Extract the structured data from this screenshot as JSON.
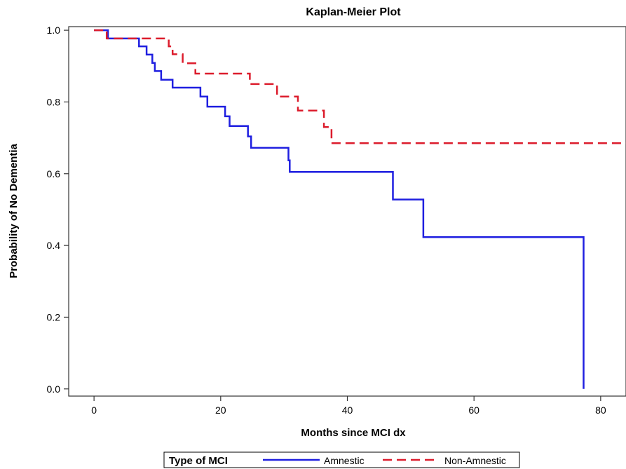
{
  "chart_data": {
    "type": "line",
    "title": "Kaplan-Meier Plot",
    "xlabel": "Months since MCI dx",
    "ylabel": "Probability of No Dementia",
    "xlim": [
      -4,
      84
    ],
    "ylim": [
      -0.02,
      1.01
    ],
    "xticks": [
      "0",
      "20",
      "40",
      "60",
      "80"
    ],
    "yticks": [
      "0.0",
      "0.2",
      "0.4",
      "0.6",
      "0.8",
      "1.0"
    ],
    "grid": false,
    "legend": {
      "title": "Type of MCI",
      "position": "bottom"
    },
    "series": [
      {
        "name": "Amnestic",
        "style": "solid",
        "color": "#1f1fe0",
        "steps": [
          [
            0,
            1.0
          ],
          [
            2.2,
            0.977
          ],
          [
            7.1,
            0.955
          ],
          [
            8.3,
            0.932
          ],
          [
            9.2,
            0.909
          ],
          [
            9.6,
            0.886
          ],
          [
            10.6,
            0.862
          ],
          [
            12.4,
            0.84
          ],
          [
            16.8,
            0.815
          ],
          [
            17.9,
            0.787
          ],
          [
            20.7,
            0.76
          ],
          [
            21.4,
            0.733
          ],
          [
            24.3,
            0.704
          ],
          [
            24.8,
            0.672
          ],
          [
            30.7,
            0.637
          ],
          [
            30.9,
            0.605
          ],
          [
            47.2,
            0.528
          ],
          [
            52.0,
            0.423
          ],
          [
            77.3,
            0.0
          ]
        ]
      },
      {
        "name": "Non-Amnestic",
        "style": "dashed",
        "color": "#dc1c2c",
        "steps": [
          [
            0,
            1.0
          ],
          [
            2.0,
            0.977
          ],
          [
            11.8,
            0.955
          ],
          [
            12.4,
            0.933
          ],
          [
            14.0,
            0.908
          ],
          [
            16.0,
            0.879
          ],
          [
            24.6,
            0.85
          ],
          [
            28.9,
            0.815
          ],
          [
            32.2,
            0.776
          ],
          [
            36.3,
            0.73
          ],
          [
            37.5,
            0.685
          ],
          [
            85.0,
            0.685
          ]
        ]
      }
    ]
  }
}
